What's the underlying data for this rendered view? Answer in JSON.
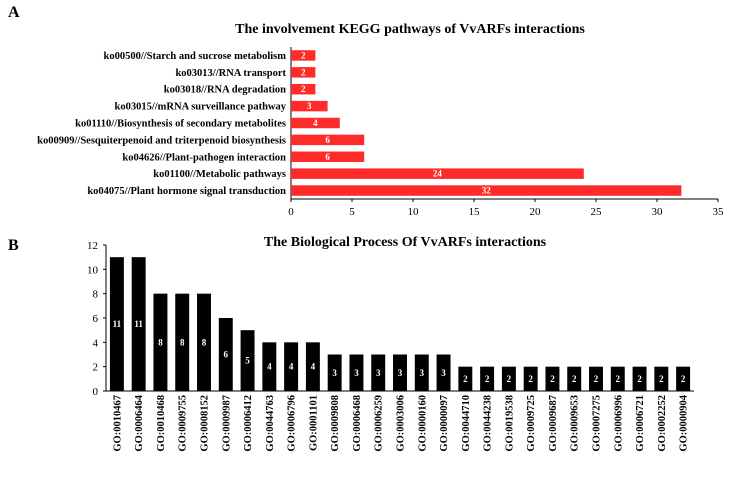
{
  "panels": {
    "a_letter": "A",
    "b_letter": "B"
  },
  "chart_data": [
    {
      "type": "bar",
      "orientation": "horizontal",
      "title": "The involvement KEGG pathways of  VvARFs interactions",
      "categories": [
        "ko00500//Starch and sucrose metabolism",
        "ko03013//RNA transport",
        "ko03018//RNA degradation",
        "ko03015//mRNA surveillance pathway",
        "ko01110//Biosynthesis of secondary metabolites",
        "ko00909//Sesquiterpenoid and triterpenoid biosynthesis",
        "ko04626//Plant-pathogen interaction",
        "ko01100//Metabolic pathways",
        "ko04075//Plant hormone signal transduction"
      ],
      "values": [
        2,
        2,
        2,
        3,
        4,
        6,
        6,
        24,
        32
      ],
      "xlim": [
        0,
        35
      ],
      "xticks": [
        0,
        5,
        10,
        15,
        20,
        25,
        30,
        35
      ],
      "bar_color": "#ff2a2a",
      "label_color": "#ffffff",
      "grid": false,
      "xlabel": "",
      "ylabel": ""
    },
    {
      "type": "bar",
      "orientation": "vertical",
      "title": "The Biological Process Of  VvARFs interactions",
      "categories": [
        "GO:0010467",
        "GO:0006464",
        "GO:0010468",
        "GO:0009755",
        "GO:0008152",
        "GO:0009987",
        "GO:0006412",
        "GO:0044763",
        "GO:0006796",
        "GO:0001101",
        "GO:0009808",
        "GO:0006468",
        "GO:0006259",
        "GO:0003006",
        "GO:0000160",
        "GO:0000097",
        "GO:0044710",
        "GO:0044238",
        "GO:0019538",
        "GO:0009725",
        "GO:0009687",
        "GO:0009653",
        "GO:0007275",
        "GO:0006996",
        "GO:0006721",
        "GO:0002252",
        "GO:0000904"
      ],
      "values": [
        11,
        11,
        8,
        8,
        8,
        6,
        5,
        4,
        4,
        4,
        3,
        3,
        3,
        3,
        3,
        3,
        2,
        2,
        2,
        2,
        2,
        2,
        2,
        2,
        2,
        2,
        2
      ],
      "ylim": [
        0,
        12
      ],
      "yticks": [
        0,
        2,
        4,
        6,
        8,
        10,
        12
      ],
      "bar_color": "#000000",
      "label_color": "#ffffff",
      "grid": false,
      "xlabel": "",
      "ylabel": ""
    }
  ]
}
